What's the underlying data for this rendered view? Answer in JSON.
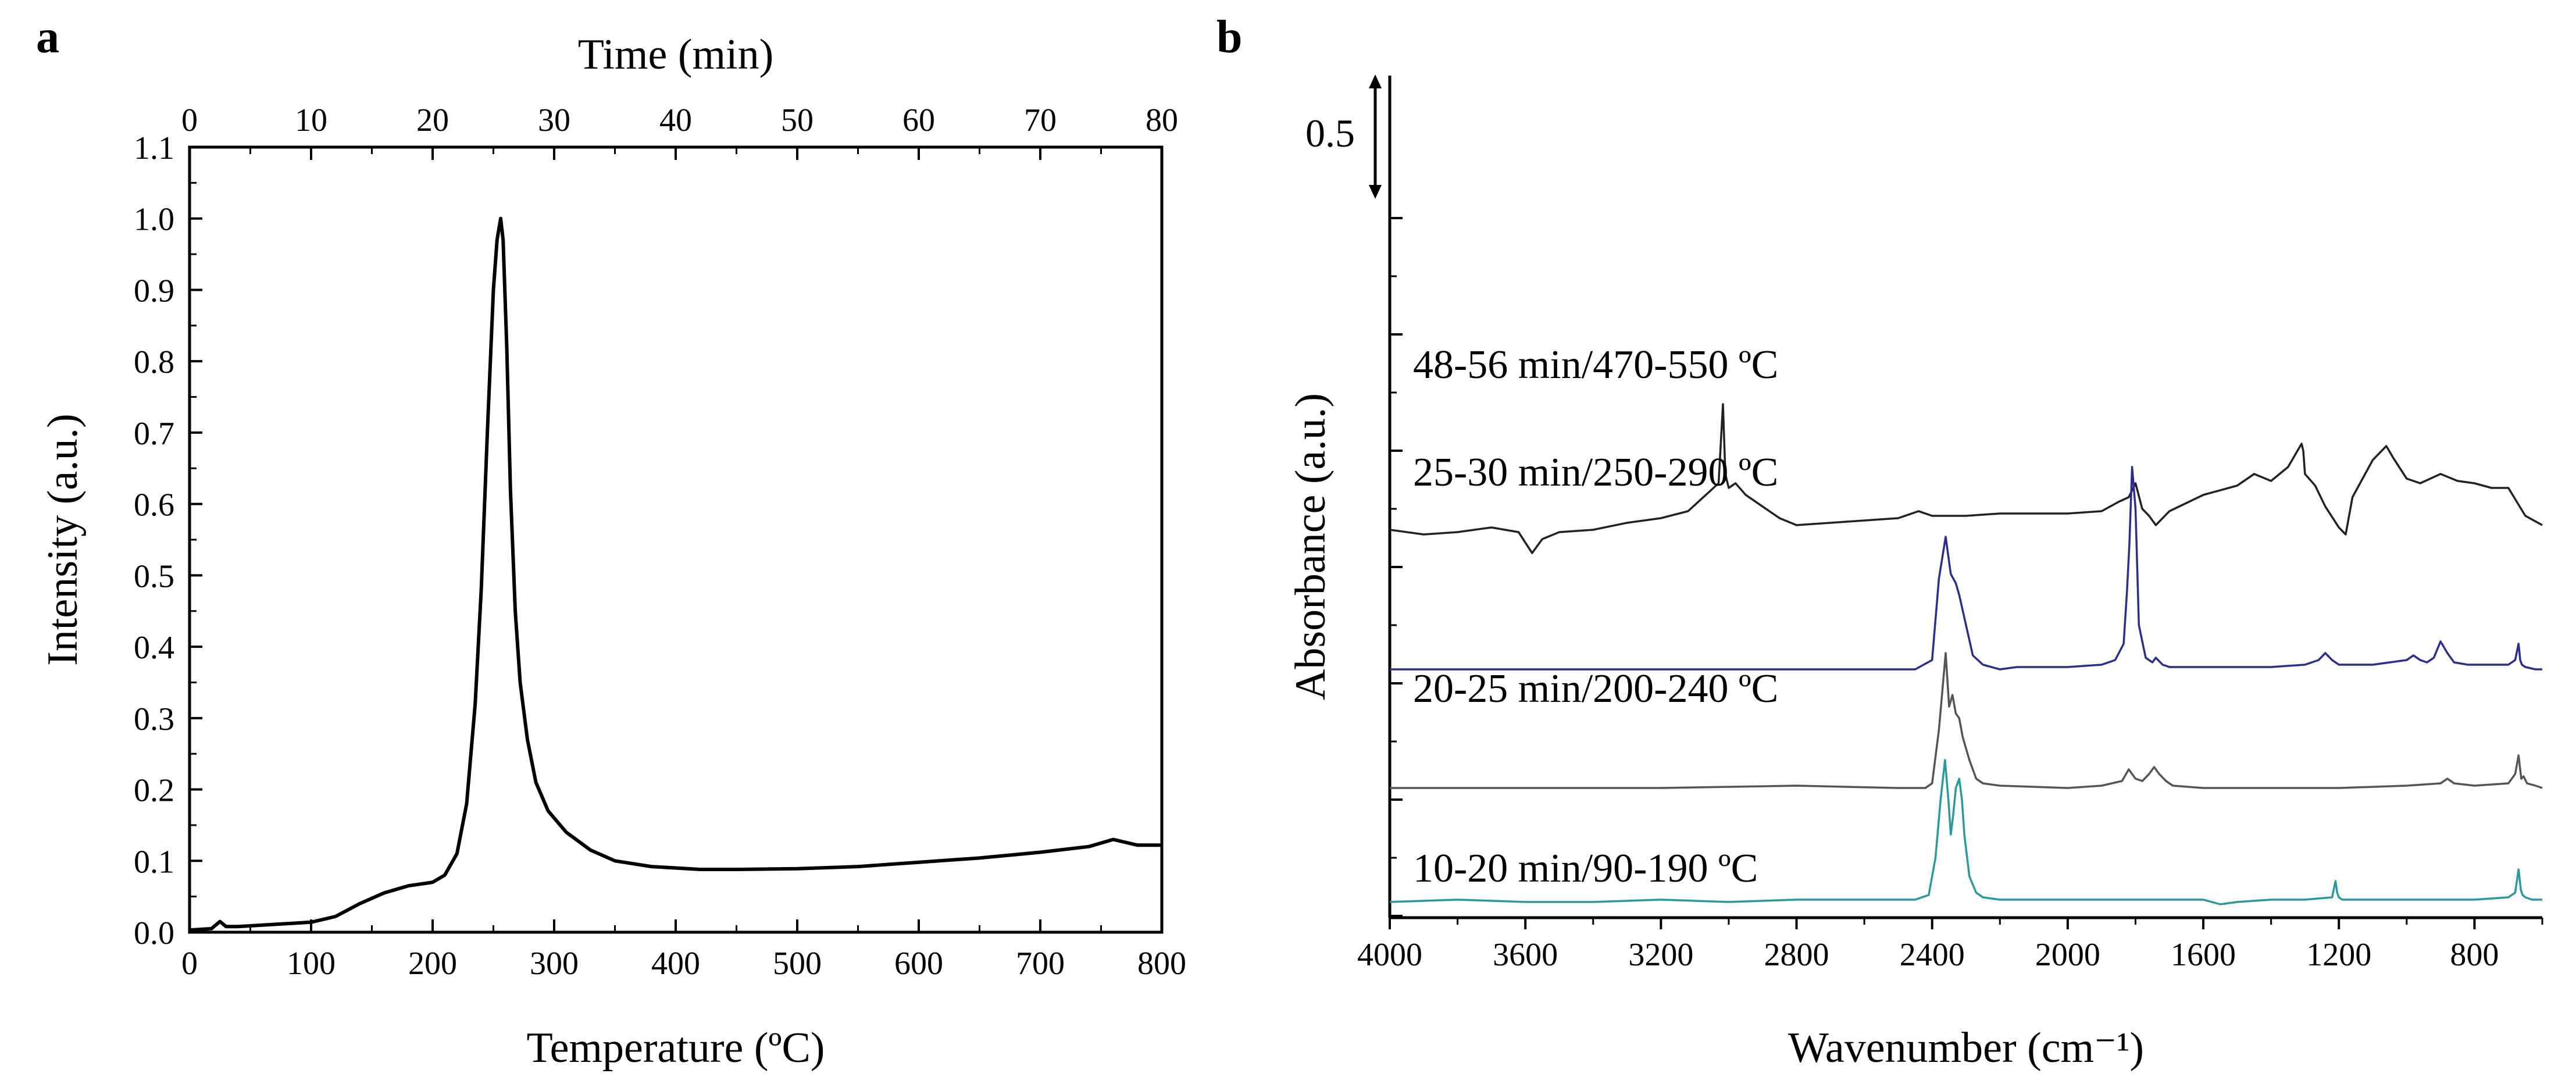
{
  "figure": {
    "panel_labels": [
      "a",
      "b"
    ]
  },
  "chart_data": [
    {
      "type": "line",
      "panel": "a",
      "xlabel": "Temperature (ºC)",
      "ylabel": "Intensity (a.u.)",
      "top_axis_label": "Time (min)",
      "xlim": [
        0,
        800
      ],
      "ylim": [
        0,
        1.1
      ],
      "top_axis_range": [
        0,
        80
      ],
      "x_ticks": [
        "0",
        "100",
        "200",
        "300",
        "400",
        "500",
        "600",
        "700",
        "800"
      ],
      "y_ticks": [
        "0.0",
        "0.1",
        "0.2",
        "0.3",
        "0.4",
        "0.5",
        "0.6",
        "0.7",
        "0.8",
        "0.9",
        "1.0",
        "1.1"
      ],
      "top_ticks": [
        "0",
        "10",
        "20",
        "30",
        "40",
        "50",
        "60",
        "70",
        "80"
      ],
      "grid": false,
      "series": [
        {
          "color": "#000000",
          "x": [
            0,
            18,
            25,
            30,
            40,
            60,
            80,
            100,
            120,
            140,
            160,
            180,
            200,
            210,
            220,
            228,
            235,
            240,
            245,
            250,
            253,
            256,
            258,
            261,
            264,
            268,
            272,
            278,
            285,
            295,
            310,
            330,
            350,
            380,
            420,
            450,
            500,
            550,
            600,
            650,
            700,
            740,
            760,
            780,
            800
          ],
          "y": [
            0.003,
            0.005,
            0.015,
            0.008,
            0.008,
            0.01,
            0.012,
            0.014,
            0.022,
            0.04,
            0.055,
            0.065,
            0.07,
            0.08,
            0.11,
            0.18,
            0.32,
            0.48,
            0.7,
            0.9,
            0.97,
            1.0,
            0.97,
            0.82,
            0.62,
            0.45,
            0.35,
            0.27,
            0.21,
            0.17,
            0.14,
            0.115,
            0.1,
            0.092,
            0.088,
            0.088,
            0.089,
            0.092,
            0.098,
            0.104,
            0.112,
            0.12,
            0.13,
            0.122,
            0.122
          ]
        }
      ]
    },
    {
      "type": "line",
      "panel": "b",
      "xlabel": "Wavenumber  (cm⁻¹)",
      "ylabel": "Absorbance (a.u.)",
      "xlim": [
        4000,
        600
      ],
      "x_ticks": [
        "4000",
        "3600",
        "3200",
        "2800",
        "2400",
        "2000",
        "1600",
        "1200",
        "800"
      ],
      "scale_bar_label": "0.5",
      "scale_bar_value": 0.5,
      "grid": false,
      "series": [
        {
          "name": "48-56 min/470-550 ºC",
          "color": "#222222",
          "offset": 1.55,
          "x": [
            4000,
            3900,
            3800,
            3700,
            3620,
            3580,
            3550,
            3500,
            3400,
            3300,
            3200,
            3120,
            3060,
            3030,
            3017,
            3010,
            3000,
            2980,
            2950,
            2900,
            2850,
            2800,
            2700,
            2600,
            2500,
            2440,
            2400,
            2300,
            2200,
            2100,
            2000,
            1900,
            1850,
            1820,
            1800,
            1780,
            1760,
            1740,
            1700,
            1600,
            1500,
            1450,
            1400,
            1350,
            1310,
            1305,
            1300,
            1270,
            1240,
            1200,
            1180,
            1160,
            1130,
            1100,
            1060,
            1040,
            1000,
            960,
            900,
            850,
            800,
            750,
            700,
            650,
            600
          ],
          "y": [
            0.06,
            0.04,
            0.05,
            0.07,
            0.05,
            -0.04,
            0.02,
            0.05,
            0.06,
            0.09,
            0.11,
            0.14,
            0.22,
            0.26,
            0.6,
            0.3,
            0.24,
            0.26,
            0.21,
            0.16,
            0.11,
            0.08,
            0.09,
            0.1,
            0.11,
            0.14,
            0.12,
            0.12,
            0.13,
            0.13,
            0.13,
            0.14,
            0.18,
            0.2,
            0.26,
            0.15,
            0.12,
            0.08,
            0.14,
            0.21,
            0.25,
            0.3,
            0.27,
            0.33,
            0.43,
            0.4,
            0.3,
            0.25,
            0.16,
            0.07,
            0.04,
            0.2,
            0.28,
            0.36,
            0.42,
            0.37,
            0.28,
            0.26,
            0.3,
            0.27,
            0.26,
            0.24,
            0.24,
            0.12,
            0.08
          ]
        },
        {
          "name": "25-30 min/250-290 ºC",
          "color": "#2b2e8e",
          "offset": 1.0,
          "x": [
            4000,
            3800,
            3600,
            3400,
            3200,
            3000,
            2800,
            2600,
            2450,
            2400,
            2380,
            2360,
            2345,
            2330,
            2320,
            2300,
            2280,
            2250,
            2200,
            2150,
            2000,
            1900,
            1860,
            1835,
            1825,
            1818,
            1810,
            1800,
            1790,
            1770,
            1750,
            1740,
            1720,
            1700,
            1600,
            1500,
            1400,
            1300,
            1260,
            1240,
            1220,
            1200,
            1100,
            1000,
            980,
            960,
            940,
            920,
            900,
            880,
            860,
            820,
            760,
            700,
            680,
            670,
            665,
            660,
            650,
            620,
            600
          ],
          "y": [
            0.01,
            0.01,
            0.01,
            0.01,
            0.01,
            0.01,
            0.01,
            0.01,
            0.01,
            0.05,
            0.4,
            0.58,
            0.42,
            0.38,
            0.33,
            0.2,
            0.07,
            0.03,
            0.01,
            0.02,
            0.02,
            0.03,
            0.05,
            0.12,
            0.35,
            0.55,
            0.88,
            0.7,
            0.2,
            0.06,
            0.04,
            0.06,
            0.03,
            0.02,
            0.02,
            0.02,
            0.02,
            0.03,
            0.05,
            0.08,
            0.05,
            0.03,
            0.03,
            0.05,
            0.07,
            0.05,
            0.04,
            0.06,
            0.13,
            0.08,
            0.04,
            0.03,
            0.03,
            0.03,
            0.05,
            0.12,
            0.05,
            0.03,
            0.02,
            0.01,
            0.01
          ]
        },
        {
          "name": "20-25 min/200-240 ºC",
          "color": "#555555",
          "offset": 0.5,
          "x": [
            4000,
            3600,
            3200,
            2800,
            2500,
            2420,
            2400,
            2380,
            2360,
            2350,
            2340,
            2330,
            2320,
            2310,
            2290,
            2270,
            2250,
            2200,
            2000,
            1900,
            1840,
            1820,
            1800,
            1780,
            1760,
            1745,
            1730,
            1710,
            1690,
            1600,
            1400,
            1200,
            1000,
            900,
            880,
            860,
            800,
            700,
            680,
            670,
            662,
            655,
            645,
            620,
            600
          ],
          "y": [
            0.0,
            0.0,
            0.0,
            0.01,
            0.0,
            0.0,
            0.02,
            0.25,
            0.58,
            0.35,
            0.4,
            0.32,
            0.3,
            0.22,
            0.12,
            0.04,
            0.02,
            0.01,
            0.0,
            0.01,
            0.03,
            0.08,
            0.04,
            0.03,
            0.06,
            0.09,
            0.06,
            0.03,
            0.01,
            0.0,
            0.0,
            0.0,
            0.01,
            0.02,
            0.04,
            0.02,
            0.01,
            0.02,
            0.06,
            0.14,
            0.04,
            0.05,
            0.02,
            0.01,
            0.0
          ]
        },
        {
          "name": "10-20 min/90-190 ºC",
          "color": "#2a9a9a",
          "offset": 0.0,
          "x": [
            4000,
            3800,
            3600,
            3400,
            3200,
            3000,
            2800,
            2600,
            2450,
            2410,
            2390,
            2375,
            2362,
            2352,
            2345,
            2338,
            2330,
            2320,
            2312,
            2305,
            2290,
            2270,
            2250,
            2200,
            2000,
            1800,
            1700,
            1600,
            1550,
            1500,
            1400,
            1300,
            1220,
            1210,
            1205,
            1200,
            1190,
            1100,
            1000,
            900,
            800,
            700,
            680,
            670,
            663,
            658,
            650,
            630,
            600
          ],
          "y": [
            0.01,
            0.02,
            0.01,
            0.01,
            0.02,
            0.01,
            0.02,
            0.02,
            0.02,
            0.04,
            0.2,
            0.45,
            0.62,
            0.45,
            0.3,
            0.38,
            0.5,
            0.54,
            0.45,
            0.3,
            0.12,
            0.05,
            0.03,
            0.02,
            0.02,
            0.02,
            0.02,
            0.02,
            0.0,
            0.01,
            0.02,
            0.02,
            0.03,
            0.1,
            0.05,
            0.03,
            0.02,
            0.02,
            0.02,
            0.02,
            0.02,
            0.03,
            0.05,
            0.15,
            0.06,
            0.04,
            0.03,
            0.02,
            0.02
          ]
        }
      ]
    }
  ]
}
